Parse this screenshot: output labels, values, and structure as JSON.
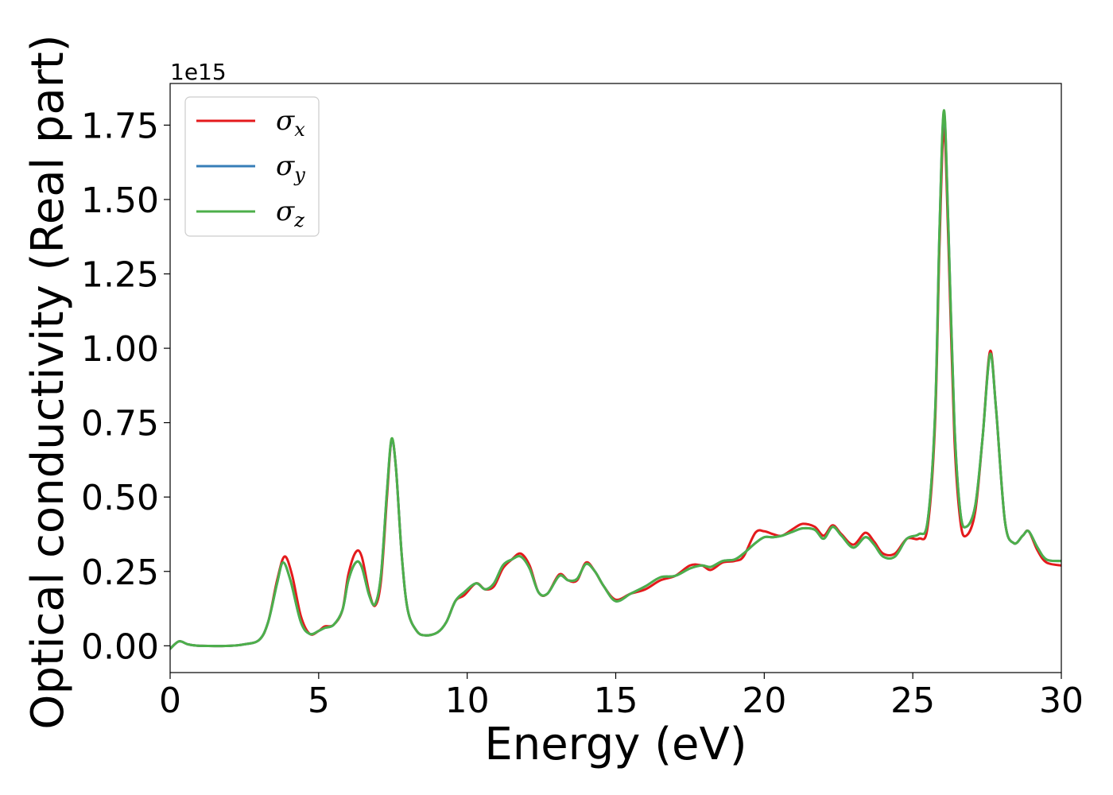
{
  "chart_data": {
    "type": "line",
    "title": "",
    "xlabel": "Energy (eV)",
    "ylabel": "Optical conductivity (Real part)",
    "y_offset_label": "1e15",
    "xlim": [
      0,
      30
    ],
    "ylim": [
      -0.09,
      1.89
    ],
    "x_ticks": [
      0,
      5,
      10,
      15,
      20,
      25,
      30
    ],
    "x_tick_labels": [
      "0",
      "5",
      "10",
      "15",
      "20",
      "25",
      "30"
    ],
    "y_ticks": [
      0.0,
      0.25,
      0.5,
      0.75,
      1.0,
      1.25,
      1.5,
      1.75
    ],
    "y_tick_labels": [
      "0.00",
      "0.25",
      "0.50",
      "0.75",
      "1.00",
      "1.25",
      "1.50",
      "1.75"
    ],
    "grid": false,
    "legend_position": "top-left",
    "series": [
      {
        "name": "σx",
        "legend_symbol": "σ",
        "legend_sub": "x",
        "color": "#e41a1c",
        "points": [
          [
            0,
            -0.01
          ],
          [
            0.3,
            0.015
          ],
          [
            0.6,
            0.005
          ],
          [
            1,
            0.0
          ],
          [
            2,
            0.0
          ],
          [
            2.5,
            0.005
          ],
          [
            3,
            0.02
          ],
          [
            3.3,
            0.08
          ],
          [
            3.6,
            0.22
          ],
          [
            3.85,
            0.3
          ],
          [
            4.1,
            0.24
          ],
          [
            4.4,
            0.1
          ],
          [
            4.7,
            0.04
          ],
          [
            5.0,
            0.05
          ],
          [
            5.2,
            0.065
          ],
          [
            5.5,
            0.07
          ],
          [
            5.8,
            0.12
          ],
          [
            6.0,
            0.24
          ],
          [
            6.25,
            0.315
          ],
          [
            6.45,
            0.3
          ],
          [
            6.7,
            0.18
          ],
          [
            6.9,
            0.135
          ],
          [
            7.1,
            0.22
          ],
          [
            7.3,
            0.5
          ],
          [
            7.45,
            0.69
          ],
          [
            7.6,
            0.6
          ],
          [
            7.8,
            0.3
          ],
          [
            8.0,
            0.12
          ],
          [
            8.3,
            0.05
          ],
          [
            8.6,
            0.035
          ],
          [
            9.0,
            0.045
          ],
          [
            9.3,
            0.08
          ],
          [
            9.6,
            0.15
          ],
          [
            9.9,
            0.17
          ],
          [
            10.3,
            0.21
          ],
          [
            10.6,
            0.19
          ],
          [
            10.9,
            0.2
          ],
          [
            11.2,
            0.26
          ],
          [
            11.5,
            0.29
          ],
          [
            11.8,
            0.31
          ],
          [
            12.1,
            0.27
          ],
          [
            12.4,
            0.18
          ],
          [
            12.7,
            0.175
          ],
          [
            13.1,
            0.24
          ],
          [
            13.4,
            0.22
          ],
          [
            13.7,
            0.22
          ],
          [
            14.0,
            0.28
          ],
          [
            14.3,
            0.25
          ],
          [
            14.6,
            0.2
          ],
          [
            15.0,
            0.155
          ],
          [
            15.5,
            0.175
          ],
          [
            16.0,
            0.19
          ],
          [
            16.5,
            0.22
          ],
          [
            17.0,
            0.235
          ],
          [
            17.5,
            0.27
          ],
          [
            17.9,
            0.27
          ],
          [
            18.2,
            0.255
          ],
          [
            18.6,
            0.28
          ],
          [
            19.0,
            0.285
          ],
          [
            19.3,
            0.3
          ],
          [
            19.7,
            0.38
          ],
          [
            20.0,
            0.385
          ],
          [
            20.3,
            0.375
          ],
          [
            20.6,
            0.37
          ],
          [
            21.0,
            0.395
          ],
          [
            21.3,
            0.41
          ],
          [
            21.7,
            0.4
          ],
          [
            22.0,
            0.37
          ],
          [
            22.3,
            0.405
          ],
          [
            22.6,
            0.375
          ],
          [
            23.0,
            0.34
          ],
          [
            23.4,
            0.38
          ],
          [
            23.7,
            0.35
          ],
          [
            24.0,
            0.31
          ],
          [
            24.4,
            0.31
          ],
          [
            24.8,
            0.36
          ],
          [
            25.2,
            0.36
          ],
          [
            25.5,
            0.4
          ],
          [
            25.75,
            0.75
          ],
          [
            25.9,
            1.35
          ],
          [
            26.05,
            1.74
          ],
          [
            26.2,
            1.35
          ],
          [
            26.4,
            0.7
          ],
          [
            26.6,
            0.42
          ],
          [
            26.8,
            0.37
          ],
          [
            27.1,
            0.45
          ],
          [
            27.35,
            0.7
          ],
          [
            27.6,
            0.99
          ],
          [
            27.8,
            0.8
          ],
          [
            28.1,
            0.42
          ],
          [
            28.4,
            0.345
          ],
          [
            28.7,
            0.37
          ],
          [
            28.9,
            0.385
          ],
          [
            29.2,
            0.32
          ],
          [
            29.5,
            0.28
          ],
          [
            30,
            0.27
          ]
        ]
      },
      {
        "name": "σy",
        "legend_symbol": "σ",
        "legend_sub": "y",
        "color": "#377eb8",
        "points": [
          [
            0,
            -0.01
          ],
          [
            0.3,
            0.015
          ],
          [
            0.6,
            0.005
          ],
          [
            1,
            0.0
          ],
          [
            2,
            0.0
          ],
          [
            2.5,
            0.005
          ],
          [
            3,
            0.02
          ],
          [
            3.3,
            0.08
          ],
          [
            3.6,
            0.21
          ],
          [
            3.8,
            0.28
          ],
          [
            4.05,
            0.22
          ],
          [
            4.4,
            0.08
          ],
          [
            4.7,
            0.04
          ],
          [
            5.0,
            0.05
          ],
          [
            5.2,
            0.06
          ],
          [
            5.5,
            0.07
          ],
          [
            5.8,
            0.12
          ],
          [
            6.0,
            0.22
          ],
          [
            6.25,
            0.28
          ],
          [
            6.45,
            0.265
          ],
          [
            6.7,
            0.17
          ],
          [
            6.9,
            0.14
          ],
          [
            7.1,
            0.24
          ],
          [
            7.3,
            0.52
          ],
          [
            7.45,
            0.69
          ],
          [
            7.6,
            0.6
          ],
          [
            7.8,
            0.3
          ],
          [
            8.0,
            0.12
          ],
          [
            8.3,
            0.05
          ],
          [
            8.6,
            0.035
          ],
          [
            9.0,
            0.045
          ],
          [
            9.3,
            0.08
          ],
          [
            9.6,
            0.15
          ],
          [
            9.9,
            0.18
          ],
          [
            10.3,
            0.21
          ],
          [
            10.6,
            0.19
          ],
          [
            10.9,
            0.21
          ],
          [
            11.2,
            0.27
          ],
          [
            11.5,
            0.29
          ],
          [
            11.8,
            0.3
          ],
          [
            12.1,
            0.26
          ],
          [
            12.4,
            0.18
          ],
          [
            12.7,
            0.175
          ],
          [
            13.1,
            0.235
          ],
          [
            13.4,
            0.22
          ],
          [
            13.7,
            0.225
          ],
          [
            14.0,
            0.275
          ],
          [
            14.3,
            0.25
          ],
          [
            14.6,
            0.2
          ],
          [
            15.0,
            0.15
          ],
          [
            15.5,
            0.175
          ],
          [
            16.0,
            0.2
          ],
          [
            16.5,
            0.23
          ],
          [
            17.0,
            0.235
          ],
          [
            17.5,
            0.26
          ],
          [
            17.9,
            0.27
          ],
          [
            18.2,
            0.265
          ],
          [
            18.6,
            0.285
          ],
          [
            19.0,
            0.29
          ],
          [
            19.3,
            0.31
          ],
          [
            19.7,
            0.345
          ],
          [
            20.0,
            0.365
          ],
          [
            20.3,
            0.365
          ],
          [
            20.6,
            0.37
          ],
          [
            21.0,
            0.385
          ],
          [
            21.3,
            0.395
          ],
          [
            21.7,
            0.39
          ],
          [
            22.0,
            0.36
          ],
          [
            22.3,
            0.4
          ],
          [
            22.6,
            0.37
          ],
          [
            23.0,
            0.33
          ],
          [
            23.4,
            0.365
          ],
          [
            23.7,
            0.34
          ],
          [
            24.0,
            0.3
          ],
          [
            24.4,
            0.3
          ],
          [
            24.8,
            0.36
          ],
          [
            25.2,
            0.375
          ],
          [
            25.5,
            0.42
          ],
          [
            25.75,
            0.78
          ],
          [
            25.9,
            1.4
          ],
          [
            26.05,
            1.79
          ],
          [
            26.2,
            1.4
          ],
          [
            26.4,
            0.75
          ],
          [
            26.6,
            0.45
          ],
          [
            26.8,
            0.4
          ],
          [
            27.1,
            0.47
          ],
          [
            27.35,
            0.7
          ],
          [
            27.6,
            0.98
          ],
          [
            27.8,
            0.8
          ],
          [
            28.1,
            0.42
          ],
          [
            28.4,
            0.345
          ],
          [
            28.7,
            0.37
          ],
          [
            28.9,
            0.385
          ],
          [
            29.2,
            0.33
          ],
          [
            29.5,
            0.29
          ],
          [
            30,
            0.285
          ]
        ]
      },
      {
        "name": "σz",
        "legend_symbol": "σ",
        "legend_sub": "z",
        "color": "#4daf4a",
        "points": [
          [
            0,
            -0.01
          ],
          [
            0.3,
            0.015
          ],
          [
            0.6,
            0.005
          ],
          [
            1,
            0.0
          ],
          [
            2,
            0.0
          ],
          [
            2.5,
            0.005
          ],
          [
            3,
            0.02
          ],
          [
            3.3,
            0.08
          ],
          [
            3.6,
            0.21
          ],
          [
            3.8,
            0.28
          ],
          [
            4.05,
            0.22
          ],
          [
            4.4,
            0.08
          ],
          [
            4.7,
            0.04
          ],
          [
            5.0,
            0.05
          ],
          [
            5.2,
            0.06
          ],
          [
            5.5,
            0.07
          ],
          [
            5.8,
            0.12
          ],
          [
            6.0,
            0.22
          ],
          [
            6.25,
            0.28
          ],
          [
            6.45,
            0.265
          ],
          [
            6.7,
            0.17
          ],
          [
            6.9,
            0.14
          ],
          [
            7.1,
            0.24
          ],
          [
            7.3,
            0.52
          ],
          [
            7.45,
            0.695
          ],
          [
            7.6,
            0.6
          ],
          [
            7.8,
            0.3
          ],
          [
            8.0,
            0.12
          ],
          [
            8.3,
            0.05
          ],
          [
            8.6,
            0.035
          ],
          [
            9.0,
            0.045
          ],
          [
            9.3,
            0.08
          ],
          [
            9.6,
            0.15
          ],
          [
            9.9,
            0.18
          ],
          [
            10.3,
            0.21
          ],
          [
            10.6,
            0.19
          ],
          [
            10.9,
            0.21
          ],
          [
            11.2,
            0.27
          ],
          [
            11.5,
            0.29
          ],
          [
            11.8,
            0.3
          ],
          [
            12.1,
            0.26
          ],
          [
            12.4,
            0.18
          ],
          [
            12.7,
            0.175
          ],
          [
            13.1,
            0.235
          ],
          [
            13.4,
            0.22
          ],
          [
            13.7,
            0.225
          ],
          [
            14.0,
            0.275
          ],
          [
            14.3,
            0.25
          ],
          [
            14.6,
            0.2
          ],
          [
            15.0,
            0.15
          ],
          [
            15.5,
            0.175
          ],
          [
            16.0,
            0.2
          ],
          [
            16.5,
            0.23
          ],
          [
            17.0,
            0.235
          ],
          [
            17.5,
            0.26
          ],
          [
            17.9,
            0.27
          ],
          [
            18.2,
            0.265
          ],
          [
            18.6,
            0.285
          ],
          [
            19.0,
            0.29
          ],
          [
            19.3,
            0.31
          ],
          [
            19.7,
            0.345
          ],
          [
            20.0,
            0.365
          ],
          [
            20.3,
            0.365
          ],
          [
            20.6,
            0.37
          ],
          [
            21.0,
            0.385
          ],
          [
            21.3,
            0.395
          ],
          [
            21.7,
            0.39
          ],
          [
            22.0,
            0.36
          ],
          [
            22.3,
            0.4
          ],
          [
            22.6,
            0.37
          ],
          [
            23.0,
            0.33
          ],
          [
            23.4,
            0.365
          ],
          [
            23.7,
            0.34
          ],
          [
            24.0,
            0.3
          ],
          [
            24.4,
            0.3
          ],
          [
            24.8,
            0.36
          ],
          [
            25.2,
            0.375
          ],
          [
            25.5,
            0.42
          ],
          [
            25.75,
            0.78
          ],
          [
            25.9,
            1.4
          ],
          [
            26.05,
            1.8
          ],
          [
            26.2,
            1.4
          ],
          [
            26.4,
            0.75
          ],
          [
            26.6,
            0.45
          ],
          [
            26.8,
            0.4
          ],
          [
            27.1,
            0.47
          ],
          [
            27.35,
            0.7
          ],
          [
            27.6,
            0.98
          ],
          [
            27.8,
            0.8
          ],
          [
            28.1,
            0.42
          ],
          [
            28.4,
            0.345
          ],
          [
            28.7,
            0.37
          ],
          [
            28.9,
            0.385
          ],
          [
            29.2,
            0.33
          ],
          [
            29.5,
            0.29
          ],
          [
            30,
            0.285
          ]
        ]
      }
    ]
  }
}
